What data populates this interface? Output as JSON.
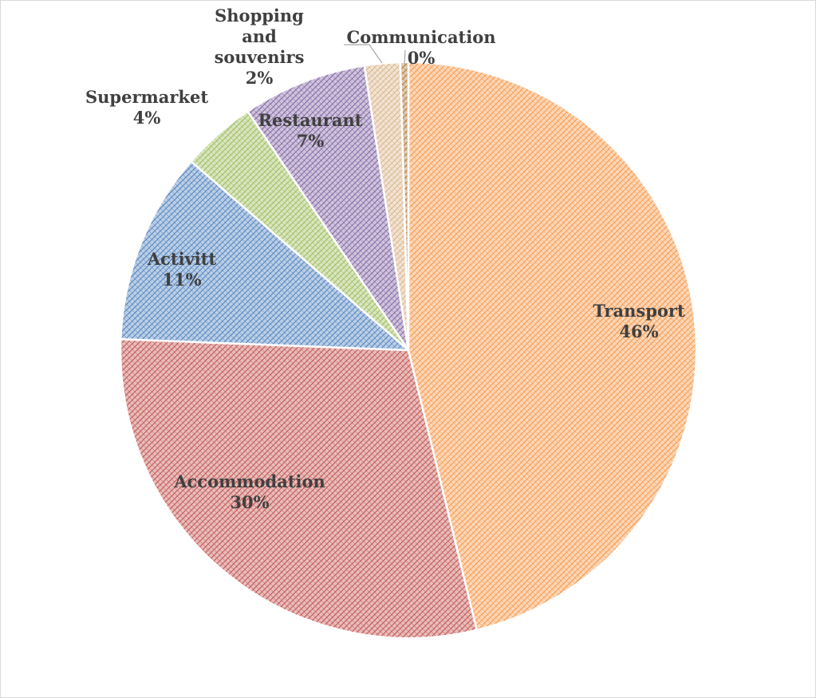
{
  "chart_data": {
    "type": "pie",
    "title": "",
    "categories": [
      "Transport",
      "Accommodation",
      "Activitt",
      "Supermarket",
      "Restaurant",
      "Shopping and souvenirs",
      "Communication"
    ],
    "values": [
      46,
      30,
      11,
      4,
      7,
      2,
      0
    ],
    "value_labels": [
      "46%",
      "30%",
      "11%",
      "4%",
      "7%",
      "2%",
      "0%"
    ],
    "colors": [
      "#f79646",
      "#c0504d",
      "#4f81bd",
      "#9bbb59",
      "#8064a2",
      "#d9b48a",
      "#b07a3b"
    ],
    "fill_pattern": "hatched",
    "start_angle": "12 o'clock",
    "direction": "clockwise",
    "legend": "none",
    "data_labels": "category and percent"
  }
}
